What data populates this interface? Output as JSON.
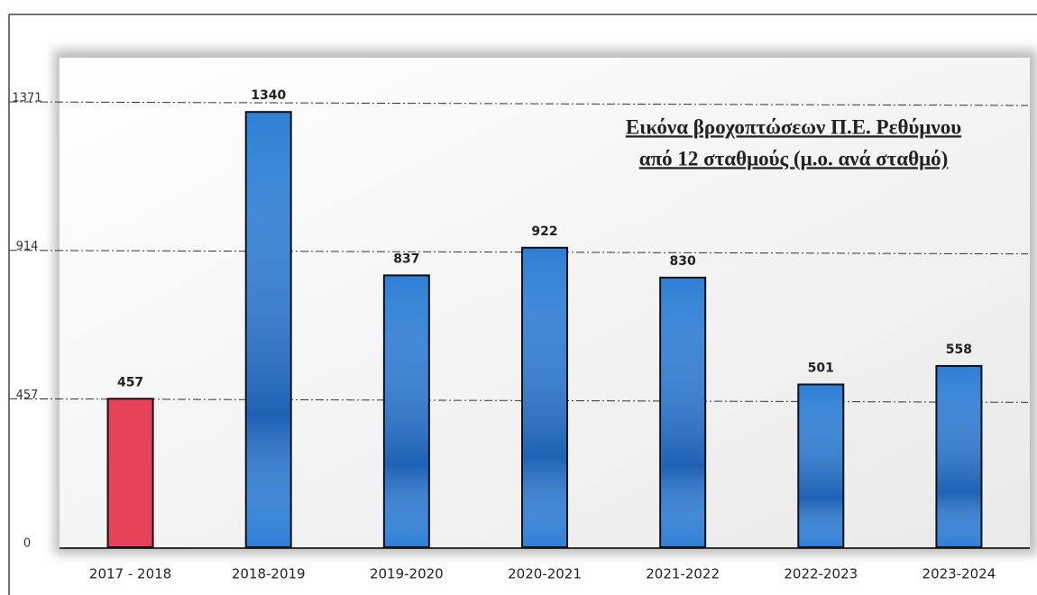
{
  "chart_data": {
    "type": "bar",
    "title": [
      "Εικόνα βροχοπτώσεων Π.Ε. Ρεθύμνου",
      "από 12 σταθμούς (μ.ο. ανά σταθμό)"
    ],
    "categories": [
      "2017 - 2018",
      "2018-2019",
      "2019-2020",
      "2020-2021",
      "2021-2022",
      "2022-2023",
      "2023-2024"
    ],
    "values": [
      457,
      1340,
      837,
      922,
      830,
      501,
      558
    ],
    "colors": [
      "#e8425a",
      "#2f7fd6",
      "#2f7fd6",
      "#2f7fd6",
      "#2f7fd6",
      "#2f7fd6",
      "#2f7fd6"
    ],
    "ylim": [
      0,
      1371
    ],
    "yticks": [
      0,
      457,
      914,
      1371
    ],
    "grid": true
  }
}
